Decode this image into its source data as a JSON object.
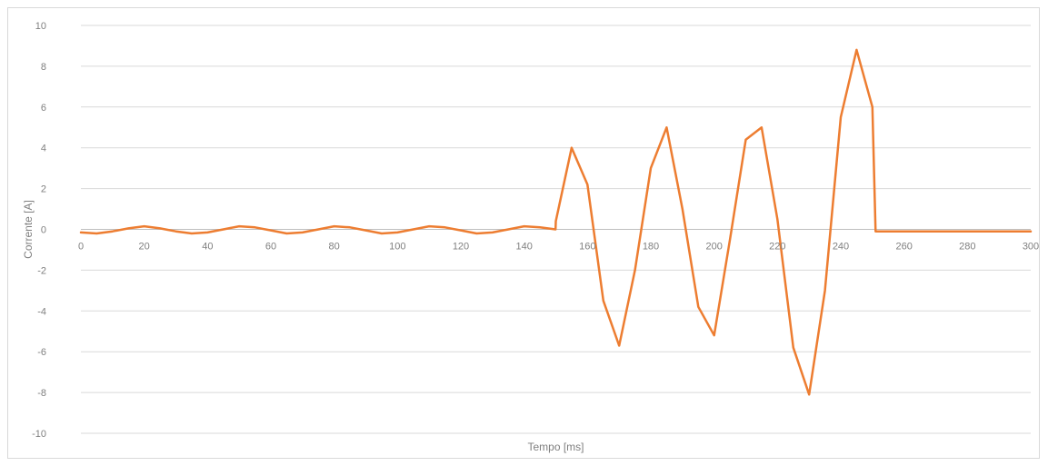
{
  "colors": {
    "series": "#ed7d31",
    "grid": "#d9d9d9",
    "axis": "#bfbfbf",
    "text": "#7f7f7f"
  },
  "chart_data": {
    "type": "line",
    "xlabel": "Tempo [ms]",
    "ylabel": "Corrente [A]",
    "xlim": [
      0,
      300
    ],
    "ylim": [
      -10,
      10
    ],
    "x_ticks": [
      0,
      20,
      40,
      60,
      80,
      100,
      120,
      140,
      160,
      180,
      200,
      220,
      240,
      260,
      280,
      300
    ],
    "y_ticks": [
      -10,
      -8,
      -6,
      -4,
      -2,
      0,
      2,
      4,
      6,
      8,
      10
    ],
    "grid": true,
    "legend": "none",
    "series": [
      {
        "x": [
          0,
          5,
          10,
          15,
          20,
          25,
          30,
          35,
          40,
          45,
          50,
          55,
          60,
          65,
          70,
          75,
          80,
          85,
          90,
          95,
          100,
          105,
          110,
          115,
          120,
          125,
          130,
          135,
          140,
          145,
          149.9,
          150,
          155,
          160,
          165,
          170,
          175,
          180,
          185,
          190,
          195,
          200,
          205,
          210,
          215,
          220,
          225,
          230,
          235,
          240,
          245,
          250,
          251,
          255,
          260,
          270,
          280,
          290,
          300
        ],
        "y": [
          -0.15,
          -0.2,
          -0.1,
          0.05,
          0.15,
          0.05,
          -0.1,
          -0.2,
          -0.15,
          0.0,
          0.15,
          0.1,
          -0.05,
          -0.2,
          -0.15,
          0.0,
          0.15,
          0.1,
          -0.05,
          -0.2,
          -0.15,
          0.0,
          0.15,
          0.1,
          -0.05,
          -0.2,
          -0.15,
          0.0,
          0.15,
          0.1,
          0.0,
          0.4,
          4.0,
          2.2,
          -3.5,
          -5.7,
          -2.0,
          3.0,
          5.0,
          1.0,
          -3.8,
          -5.2,
          -0.5,
          4.4,
          5.0,
          0.5,
          -5.8,
          -8.1,
          -3.0,
          5.5,
          8.8,
          6.0,
          -0.1,
          -0.1,
          -0.1,
          -0.1,
          -0.1,
          -0.1,
          -0.1
        ]
      }
    ]
  }
}
